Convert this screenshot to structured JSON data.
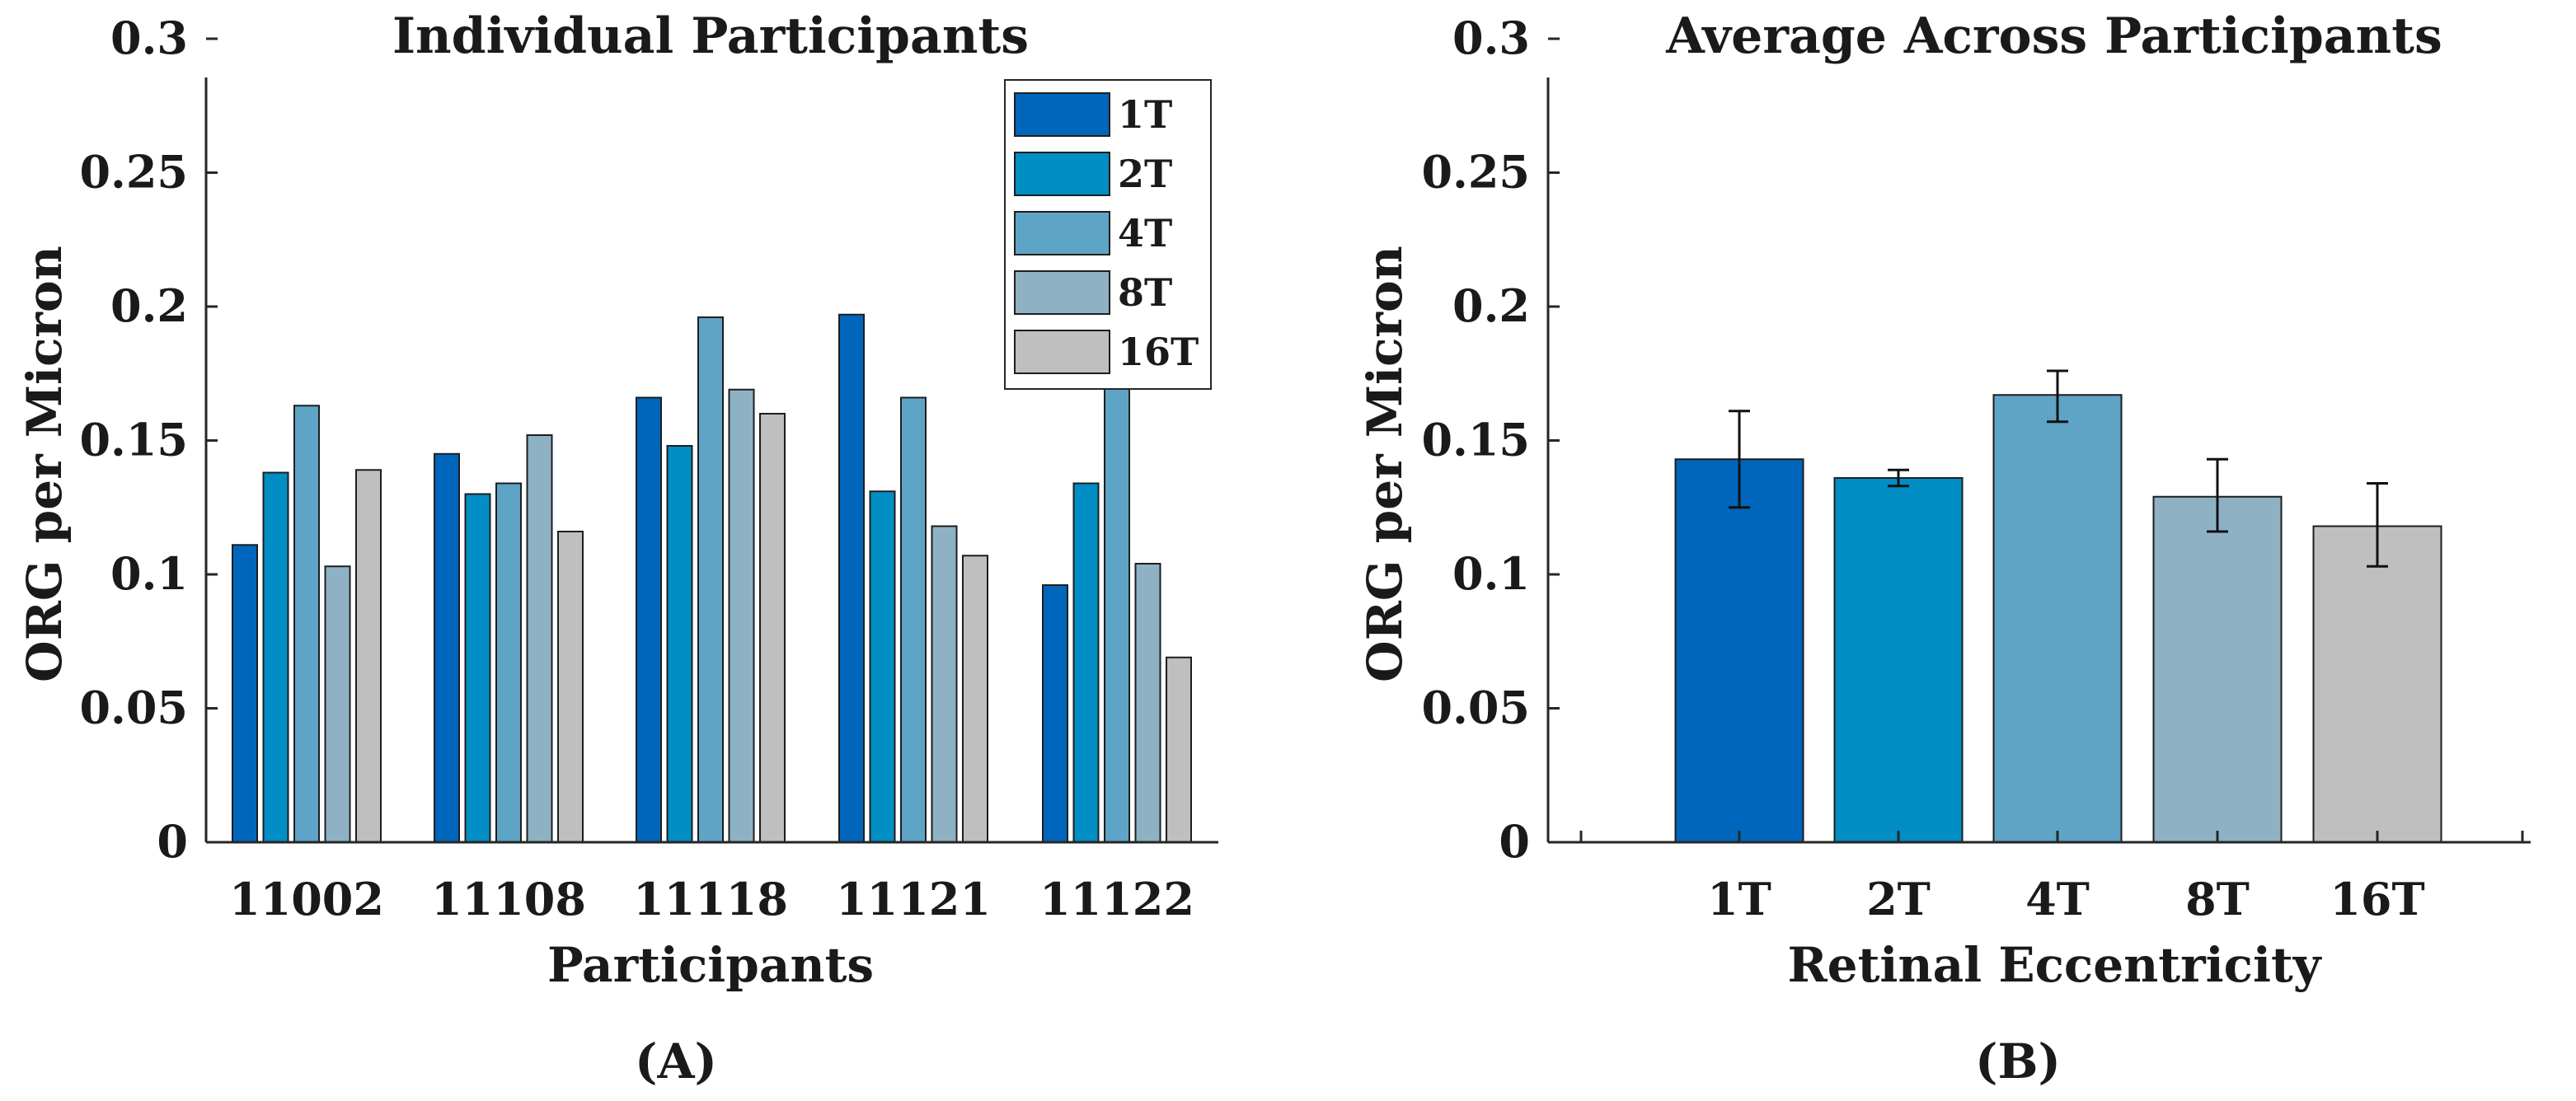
{
  "figure": {
    "caption_a": "(A)",
    "caption_b": "(B)"
  },
  "chart_data": [
    {
      "type": "bar",
      "title": "Individual Participants",
      "xlabel": "Participants",
      "ylabel": "ORG per Micron",
      "ylim": [
        0,
        0.3
      ],
      "yticks": [
        "0",
        "0.05",
        "0.1",
        "0.15",
        "0.2",
        "0.25",
        "0.3"
      ],
      "categories": [
        "11002",
        "11108",
        "11118",
        "11121",
        "11122"
      ],
      "legend_position": "top-right",
      "series": [
        {
          "name": "1T",
          "color": "#0066bb",
          "values": [
            0.111,
            0.145,
            0.166,
            0.197,
            0.096
          ]
        },
        {
          "name": "2T",
          "color": "#008ec4",
          "values": [
            0.138,
            0.13,
            0.148,
            0.131,
            0.134
          ]
        },
        {
          "name": "4T",
          "color": "#5ea4c6",
          "values": [
            0.163,
            0.134,
            0.196,
            0.166,
            0.174
          ]
        },
        {
          "name": "8T",
          "color": "#8eb2c4",
          "values": [
            0.103,
            0.152,
            0.169,
            0.118,
            0.104
          ]
        },
        {
          "name": "16T",
          "color": "#bfbfbf",
          "values": [
            0.139,
            0.116,
            0.16,
            0.107,
            0.069
          ]
        }
      ]
    },
    {
      "type": "bar",
      "title": "Average Across Participants",
      "xlabel": "Retinal Eccentricity",
      "ylabel": "ORG per Micron",
      "ylim": [
        0,
        0.3
      ],
      "yticks": [
        "0",
        "0.05",
        "0.1",
        "0.15",
        "0.2",
        "0.25",
        "0.3"
      ],
      "categories": [
        "1T",
        "2T",
        "4T",
        "8T",
        "16T"
      ],
      "colors": [
        "#0066bb",
        "#008ec4",
        "#5ea4c6",
        "#8eb2c4",
        "#bfbfbf"
      ],
      "values": [
        0.143,
        0.136,
        0.167,
        0.129,
        0.118
      ],
      "error_low": [
        0.125,
        0.133,
        0.157,
        0.116,
        0.103
      ],
      "error_high": [
        0.161,
        0.139,
        0.176,
        0.143,
        0.134
      ]
    }
  ]
}
